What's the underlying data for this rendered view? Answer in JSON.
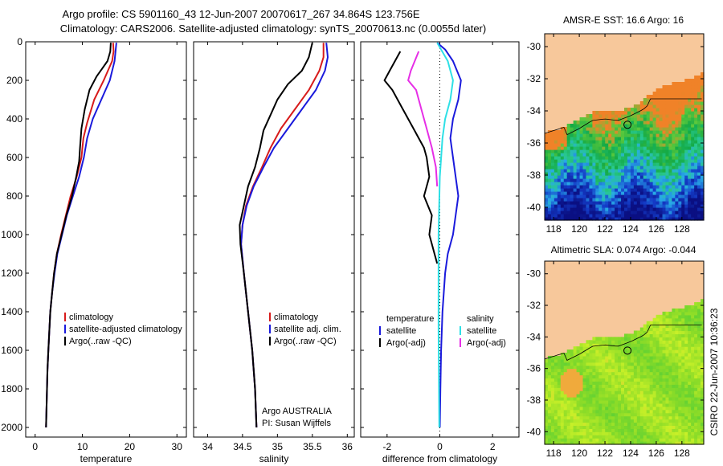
{
  "colors": {
    "red": "#d81b1b",
    "blue": "#1a1adc",
    "black": "#000000",
    "magenta": "#e62ee6",
    "cyan": "#2ee0e6",
    "land": "#f7c89b"
  },
  "header": {
    "line1": "Argo profile: CS 5901160_43 12-Jun-2007 20070617_267 34.864S 123.756E",
    "line2": "Climatology: CARS2006. Satellite-adjusted climatology: synTS_20070613.nc (0.0055d later)"
  },
  "side_stamp": "CSIRO 22-Jun-2007 10:36:23",
  "chart_data": [
    {
      "id": "temperature",
      "type": "line",
      "xlabel": "temperature",
      "ylabel": "",
      "xlim": [
        -2,
        32
      ],
      "ylim": [
        2050,
        0
      ],
      "xticks": [
        0,
        10,
        20,
        30
      ],
      "yticks": [
        0,
        200,
        400,
        600,
        800,
        1000,
        1200,
        1400,
        1600,
        1800,
        2000
      ],
      "legend": {
        "placement": "lower-right",
        "entries": [
          "climatology",
          "satellite-adjusted climatology",
          "Argo(..raw -QC)"
        ]
      },
      "series": [
        {
          "name": "climatology",
          "color": "red",
          "points": [
            [
              16.5,
              5
            ],
            [
              16.6,
              50
            ],
            [
              16.3,
              100
            ],
            [
              14.5,
              200
            ],
            [
              12.5,
              300
            ],
            [
              11,
              420
            ],
            [
              10.2,
              500
            ],
            [
              9.8,
              600
            ],
            [
              8.8,
              700
            ],
            [
              7.5,
              800
            ],
            [
              6.5,
              900
            ],
            [
              5.5,
              1000
            ],
            [
              4.6,
              1100
            ],
            [
              4.0,
              1200
            ],
            [
              3.6,
              1300
            ],
            [
              3.2,
              1400
            ],
            [
              3.0,
              1500
            ],
            [
              2.8,
              1600
            ],
            [
              2.6,
              1700
            ],
            [
              2.5,
              1800
            ],
            [
              2.4,
              1900
            ],
            [
              2.3,
              2000
            ]
          ]
        },
        {
          "name": "satellite-adjusted climatology",
          "color": "blue",
          "points": [
            [
              17.2,
              5
            ],
            [
              17.0,
              50
            ],
            [
              16.8,
              100
            ],
            [
              15.8,
              200
            ],
            [
              14.0,
              300
            ],
            [
              12.2,
              400
            ],
            [
              11,
              500
            ],
            [
              10.3,
              600
            ],
            [
              9.3,
              700
            ],
            [
              8,
              800
            ],
            [
              6.7,
              900
            ],
            [
              5.7,
              1000
            ],
            [
              4.7,
              1100
            ],
            [
              4.1,
              1200
            ],
            [
              3.6,
              1300
            ],
            [
              3.2,
              1400
            ],
            [
              3.0,
              1500
            ],
            [
              2.8,
              1600
            ],
            [
              2.6,
              1700
            ],
            [
              2.5,
              1800
            ],
            [
              2.4,
              1900
            ],
            [
              2.3,
              2000
            ]
          ]
        },
        {
          "name": "Argo(..raw -QC)",
          "color": "black",
          "points": [
            [
              16.0,
              5
            ],
            [
              15.9,
              50
            ],
            [
              15.3,
              100
            ],
            [
              13.0,
              180
            ],
            [
              11.5,
              250
            ],
            [
              10.5,
              350
            ],
            [
              9.8,
              450
            ],
            [
              9.5,
              550
            ],
            [
              9.3,
              620
            ],
            [
              8.7,
              700
            ],
            [
              7.8,
              800
            ],
            [
              6.6,
              900
            ],
            [
              5.6,
              1000
            ],
            [
              4.6,
              1100
            ],
            [
              4.0,
              1200
            ],
            [
              3.6,
              1300
            ],
            [
              3.2,
              1400
            ],
            [
              3.0,
              1500
            ],
            [
              2.8,
              1600
            ],
            [
              2.6,
              1700
            ],
            [
              2.5,
              1800
            ],
            [
              2.4,
              1900
            ],
            [
              2.3,
              2000
            ]
          ]
        }
      ]
    },
    {
      "id": "salinity",
      "type": "line",
      "xlabel": "salinity",
      "ylabel": "",
      "xlim": [
        33.8,
        36.1
      ],
      "ylim": [
        2050,
        0
      ],
      "xticks": [
        34,
        34.5,
        35,
        35.5,
        36
      ],
      "yticks": [
        0,
        200,
        400,
        600,
        800,
        1000,
        1200,
        1400,
        1600,
        1800,
        2000
      ],
      "legend": {
        "placement": "lower-right",
        "entries": [
          "climatology",
          "satellite adj. clim.",
          "Argo(..raw -QC)"
        ]
      },
      "note_lines": [
        "Argo AUSTRALIA",
        "PI: Susan Wijffels"
      ],
      "series": [
        {
          "name": "climatology",
          "color": "red",
          "points": [
            [
              35.66,
              5
            ],
            [
              35.66,
              80
            ],
            [
              35.6,
              150
            ],
            [
              35.45,
              250
            ],
            [
              35.25,
              350
            ],
            [
              35.05,
              450
            ],
            [
              34.9,
              550
            ],
            [
              34.78,
              650
            ],
            [
              34.65,
              750
            ],
            [
              34.55,
              850
            ],
            [
              34.5,
              950
            ],
            [
              34.48,
              1050
            ],
            [
              34.52,
              1200
            ],
            [
              34.58,
              1400
            ],
            [
              34.64,
              1600
            ],
            [
              34.68,
              1800
            ],
            [
              34.7,
              2000
            ]
          ]
        },
        {
          "name": "satellite adj. clim.",
          "color": "blue",
          "points": [
            [
              35.7,
              5
            ],
            [
              35.72,
              80
            ],
            [
              35.68,
              150
            ],
            [
              35.55,
              250
            ],
            [
              35.35,
              350
            ],
            [
              35.15,
              450
            ],
            [
              34.95,
              550
            ],
            [
              34.8,
              650
            ],
            [
              34.66,
              750
            ],
            [
              34.56,
              850
            ],
            [
              34.5,
              950
            ],
            [
              34.48,
              1050
            ],
            [
              34.52,
              1200
            ],
            [
              34.58,
              1400
            ],
            [
              34.64,
              1600
            ],
            [
              34.68,
              1800
            ],
            [
              34.7,
              2000
            ]
          ]
        },
        {
          "name": "Argo(..raw -QC)",
          "color": "black",
          "points": [
            [
              35.5,
              5
            ],
            [
              35.45,
              80
            ],
            [
              35.35,
              150
            ],
            [
              35.15,
              220
            ],
            [
              35.0,
              300
            ],
            [
              34.9,
              380
            ],
            [
              34.8,
              460
            ],
            [
              34.75,
              550
            ],
            [
              34.68,
              650
            ],
            [
              34.58,
              750
            ],
            [
              34.52,
              850
            ],
            [
              34.46,
              950
            ],
            [
              34.47,
              1050
            ],
            [
              34.52,
              1200
            ],
            [
              34.58,
              1400
            ],
            [
              34.64,
              1600
            ],
            [
              34.68,
              1800
            ],
            [
              34.7,
              2000
            ]
          ]
        }
      ]
    },
    {
      "id": "difference",
      "type": "line",
      "xlabel": "difference from climatology",
      "ylabel": "",
      "xlim": [
        -3,
        3
      ],
      "ylim": [
        2050,
        0
      ],
      "xticks": [
        -2,
        0,
        2
      ],
      "yticks": [
        0,
        200,
        400,
        600,
        800,
        1000,
        1200,
        1400,
        1600,
        1800,
        2000
      ],
      "legend": {
        "placement": "lower-center",
        "columns": [
          {
            "title": "temperature",
            "entries": [
              "satellite",
              "Argo(-adj)"
            ]
          },
          {
            "title": "salinity",
            "entries": [
              "satellite",
              "Argo(-adj)"
            ]
          }
        ]
      },
      "series": [
        {
          "name": "temperature satellite",
          "color": "blue",
          "points": [
            [
              -0.1,
              5
            ],
            [
              0.2,
              40
            ],
            [
              0.5,
              100
            ],
            [
              0.8,
              200
            ],
            [
              0.7,
              300
            ],
            [
              0.5,
              400
            ],
            [
              0.4,
              500
            ],
            [
              0.5,
              600
            ],
            [
              0.6,
              700
            ],
            [
              0.7,
              800
            ],
            [
              0.6,
              900
            ],
            [
              0.5,
              1000
            ],
            [
              0.3,
              1100
            ],
            [
              0.2,
              1200
            ],
            [
              0.1,
              1400
            ],
            [
              0.05,
              1600
            ],
            [
              0.02,
              1800
            ],
            [
              0,
              2000
            ]
          ]
        },
        {
          "name": "temperature Argo(-adj)",
          "color": "black",
          "points": [
            [
              -1.5,
              50
            ],
            [
              -1.9,
              150
            ],
            [
              -2.1,
              200
            ],
            [
              -1.8,
              250
            ],
            [
              -1.4,
              350
            ],
            [
              -1.0,
              450
            ],
            [
              -0.6,
              550
            ],
            [
              -0.5,
              600
            ],
            [
              -0.4,
              700
            ],
            [
              -0.6,
              800
            ],
            [
              -0.3,
              900
            ],
            [
              -0.4,
              1000
            ],
            [
              -0.2,
              1100
            ],
            [
              -0.1,
              1150
            ]
          ]
        },
        {
          "name": "salinity satellite",
          "color": "cyan",
          "points": [
            [
              -0.1,
              5
            ],
            [
              0.3,
              100
            ],
            [
              0.5,
              200
            ],
            [
              0.4,
              300
            ],
            [
              0.2,
              400
            ],
            [
              0.1,
              500
            ],
            [
              0,
              700
            ],
            [
              -0.05,
              1000
            ],
            [
              -0.05,
              1500
            ],
            [
              -0.02,
              2000
            ]
          ]
        },
        {
          "name": "salinity Argo(-adj)",
          "color": "magenta",
          "points": [
            [
              -0.8,
              50
            ],
            [
              -1.1,
              150
            ],
            [
              -1.2,
              200
            ],
            [
              -0.9,
              250
            ],
            [
              -0.7,
              350
            ],
            [
              -0.5,
              450
            ],
            [
              -0.3,
              550
            ],
            [
              -0.15,
              650
            ],
            [
              -0.1,
              750
            ]
          ]
        }
      ]
    },
    {
      "id": "sst_map",
      "type": "heatmap",
      "title": "AMSR-E SST: 16.6 Argo: 16",
      "xlim": [
        117.3,
        129.7
      ],
      "ylim": [
        -40.8,
        -29.2
      ],
      "xticks": [
        118,
        120,
        122,
        124,
        126,
        128
      ],
      "yticks": [
        -30,
        -32,
        -34,
        -36,
        -38,
        -40
      ],
      "marker": [
        123.756,
        -34.864
      ]
    },
    {
      "id": "sla_map",
      "type": "heatmap",
      "title": "Altimetric SLA: 0.074 Argo: -0.044",
      "xlim": [
        117.3,
        129.7
      ],
      "ylim": [
        -40.8,
        -29.2
      ],
      "xticks": [
        118,
        120,
        122,
        124,
        126,
        128
      ],
      "yticks": [
        -30,
        -32,
        -34,
        -36,
        -38,
        -40
      ],
      "marker": [
        123.756,
        -34.864
      ]
    }
  ]
}
